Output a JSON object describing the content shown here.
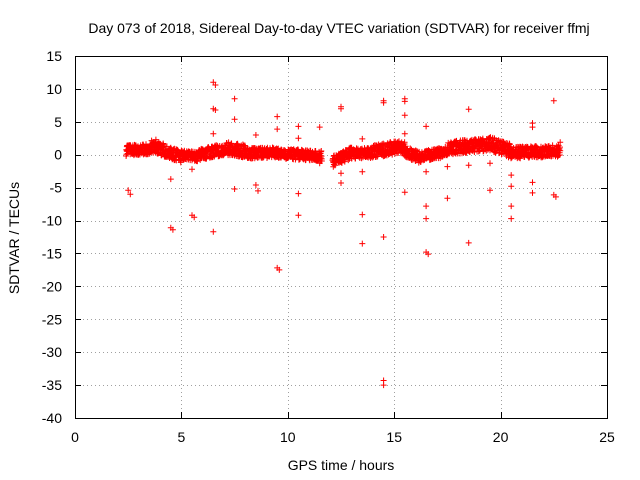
{
  "chart_data": {
    "type": "scatter",
    "title": "Day 073 of 2018, Sidereal Day-to-day VTEC variation (SDTVAR) for receiver ffmj",
    "xlabel": "GPS time / hours",
    "ylabel": "SDTVAR / TECUs",
    "xlim": [
      0,
      25
    ],
    "ylim": [
      -40,
      15
    ],
    "xticks": [
      0,
      5,
      10,
      15,
      20,
      25
    ],
    "yticks": [
      15,
      10,
      5,
      0,
      -5,
      -10,
      -15,
      -20,
      -25,
      -30,
      -35,
      -40
    ],
    "xtick_labels": [
      "0",
      "5",
      "10",
      "15",
      "20",
      "25"
    ],
    "ytick_labels": [
      "15",
      "10",
      "5",
      "0",
      "-5",
      "-10",
      "-15",
      "-20",
      "-25",
      "-30",
      "-35",
      "-40"
    ],
    "grid": true,
    "marker": "+",
    "color": "#ff0000",
    "band_segments": [
      {
        "x0": 2.4,
        "x1": 3.6,
        "y0": 0.6,
        "y1": 0.9,
        "amp": 0.8
      },
      {
        "x0": 3.6,
        "x1": 4.2,
        "y0": 1.2,
        "y1": 0.8,
        "amp": 1.0
      },
      {
        "x0": 4.2,
        "x1": 5.0,
        "y0": 0.5,
        "y1": -0.3,
        "amp": 0.9
      },
      {
        "x0": 5.0,
        "x1": 5.8,
        "y0": 0.0,
        "y1": -0.3,
        "amp": 0.7
      },
      {
        "x0": 5.8,
        "x1": 7.0,
        "y0": 0.0,
        "y1": 0.8,
        "amp": 0.9
      },
      {
        "x0": 7.0,
        "x1": 8.0,
        "y0": 1.0,
        "y1": 0.5,
        "amp": 1.0
      },
      {
        "x0": 8.0,
        "x1": 9.5,
        "y0": 0.2,
        "y1": 0.3,
        "amp": 0.8
      },
      {
        "x0": 9.5,
        "x1": 11.6,
        "y0": 0.2,
        "y1": -0.2,
        "amp": 0.8
      },
      {
        "x0": 12.1,
        "x1": 13.0,
        "y0": -1.0,
        "y1": 0.3,
        "amp": 0.9
      },
      {
        "x0": 13.0,
        "x1": 14.0,
        "y0": 0.2,
        "y1": 0.3,
        "amp": 0.8
      },
      {
        "x0": 14.0,
        "x1": 15.5,
        "y0": 0.5,
        "y1": 1.3,
        "amp": 1.0
      },
      {
        "x0": 15.5,
        "x1": 16.2,
        "y0": 0.6,
        "y1": -0.5,
        "amp": 0.9
      },
      {
        "x0": 16.2,
        "x1": 17.5,
        "y0": -0.3,
        "y1": 0.5,
        "amp": 0.8
      },
      {
        "x0": 17.5,
        "x1": 19.5,
        "y0": 1.0,
        "y1": 1.6,
        "amp": 1.0
      },
      {
        "x0": 19.5,
        "x1": 20.5,
        "y0": 1.7,
        "y1": 0.5,
        "amp": 1.1
      },
      {
        "x0": 20.5,
        "x1": 22.8,
        "y0": 0.3,
        "y1": 0.6,
        "amp": 0.9
      }
    ],
    "outliers": [
      [
        2.5,
        -5.4
      ],
      [
        2.6,
        -6.0
      ],
      [
        3.8,
        2.3
      ],
      [
        4.5,
        -3.7
      ],
      [
        4.5,
        -11.1
      ],
      [
        4.6,
        -11.4
      ],
      [
        5.5,
        -2.2
      ],
      [
        5.5,
        -9.2
      ],
      [
        5.6,
        -9.5
      ],
      [
        6.5,
        11.0
      ],
      [
        6.6,
        10.6
      ],
      [
        6.5,
        7.0
      ],
      [
        6.6,
        6.8
      ],
      [
        6.5,
        3.2
      ],
      [
        6.5,
        -11.7
      ],
      [
        7.5,
        8.5
      ],
      [
        7.5,
        5.4
      ],
      [
        7.5,
        -5.2
      ],
      [
        8.5,
        3.0
      ],
      [
        8.5,
        -4.6
      ],
      [
        8.6,
        -5.5
      ],
      [
        9.5,
        5.8
      ],
      [
        9.5,
        3.9
      ],
      [
        9.5,
        -17.2
      ],
      [
        9.6,
        -17.5
      ],
      [
        10.5,
        4.3
      ],
      [
        10.5,
        2.5
      ],
      [
        10.5,
        -5.9
      ],
      [
        10.5,
        -9.2
      ],
      [
        11.5,
        4.2
      ],
      [
        11.5,
        -1.3
      ],
      [
        12.5,
        7.3
      ],
      [
        12.5,
        7.0
      ],
      [
        12.5,
        -2.8
      ],
      [
        12.5,
        -4.3
      ],
      [
        13.5,
        2.4
      ],
      [
        13.5,
        -2.6
      ],
      [
        13.5,
        -9.1
      ],
      [
        13.5,
        -13.5
      ],
      [
        14.5,
        8.2
      ],
      [
        14.5,
        7.9
      ],
      [
        14.5,
        -12.5
      ],
      [
        14.5,
        -34.3
      ],
      [
        14.5,
        -35.0
      ],
      [
        15.5,
        8.5
      ],
      [
        15.5,
        8.1
      ],
      [
        15.5,
        6.0
      ],
      [
        15.5,
        3.2
      ],
      [
        15.5,
        -5.7
      ],
      [
        16.5,
        4.3
      ],
      [
        16.5,
        -2.6
      ],
      [
        16.5,
        -7.8
      ],
      [
        16.5,
        -9.7
      ],
      [
        16.5,
        -14.8
      ],
      [
        16.6,
        -15.1
      ],
      [
        17.5,
        -1.8
      ],
      [
        17.5,
        -6.6
      ],
      [
        18.5,
        6.9
      ],
      [
        18.5,
        -1.6
      ],
      [
        18.5,
        -13.4
      ],
      [
        19.5,
        -1.3
      ],
      [
        19.5,
        -5.4
      ],
      [
        20.5,
        -3.1
      ],
      [
        20.5,
        -4.8
      ],
      [
        20.5,
        -7.8
      ],
      [
        20.5,
        -9.7
      ],
      [
        21.5,
        4.8
      ],
      [
        21.5,
        4.2
      ],
      [
        21.5,
        -4.2
      ],
      [
        21.5,
        -5.8
      ],
      [
        22.5,
        8.2
      ],
      [
        22.5,
        -6.1
      ],
      [
        22.6,
        -6.4
      ],
      [
        22.8,
        1.9
      ]
    ]
  }
}
